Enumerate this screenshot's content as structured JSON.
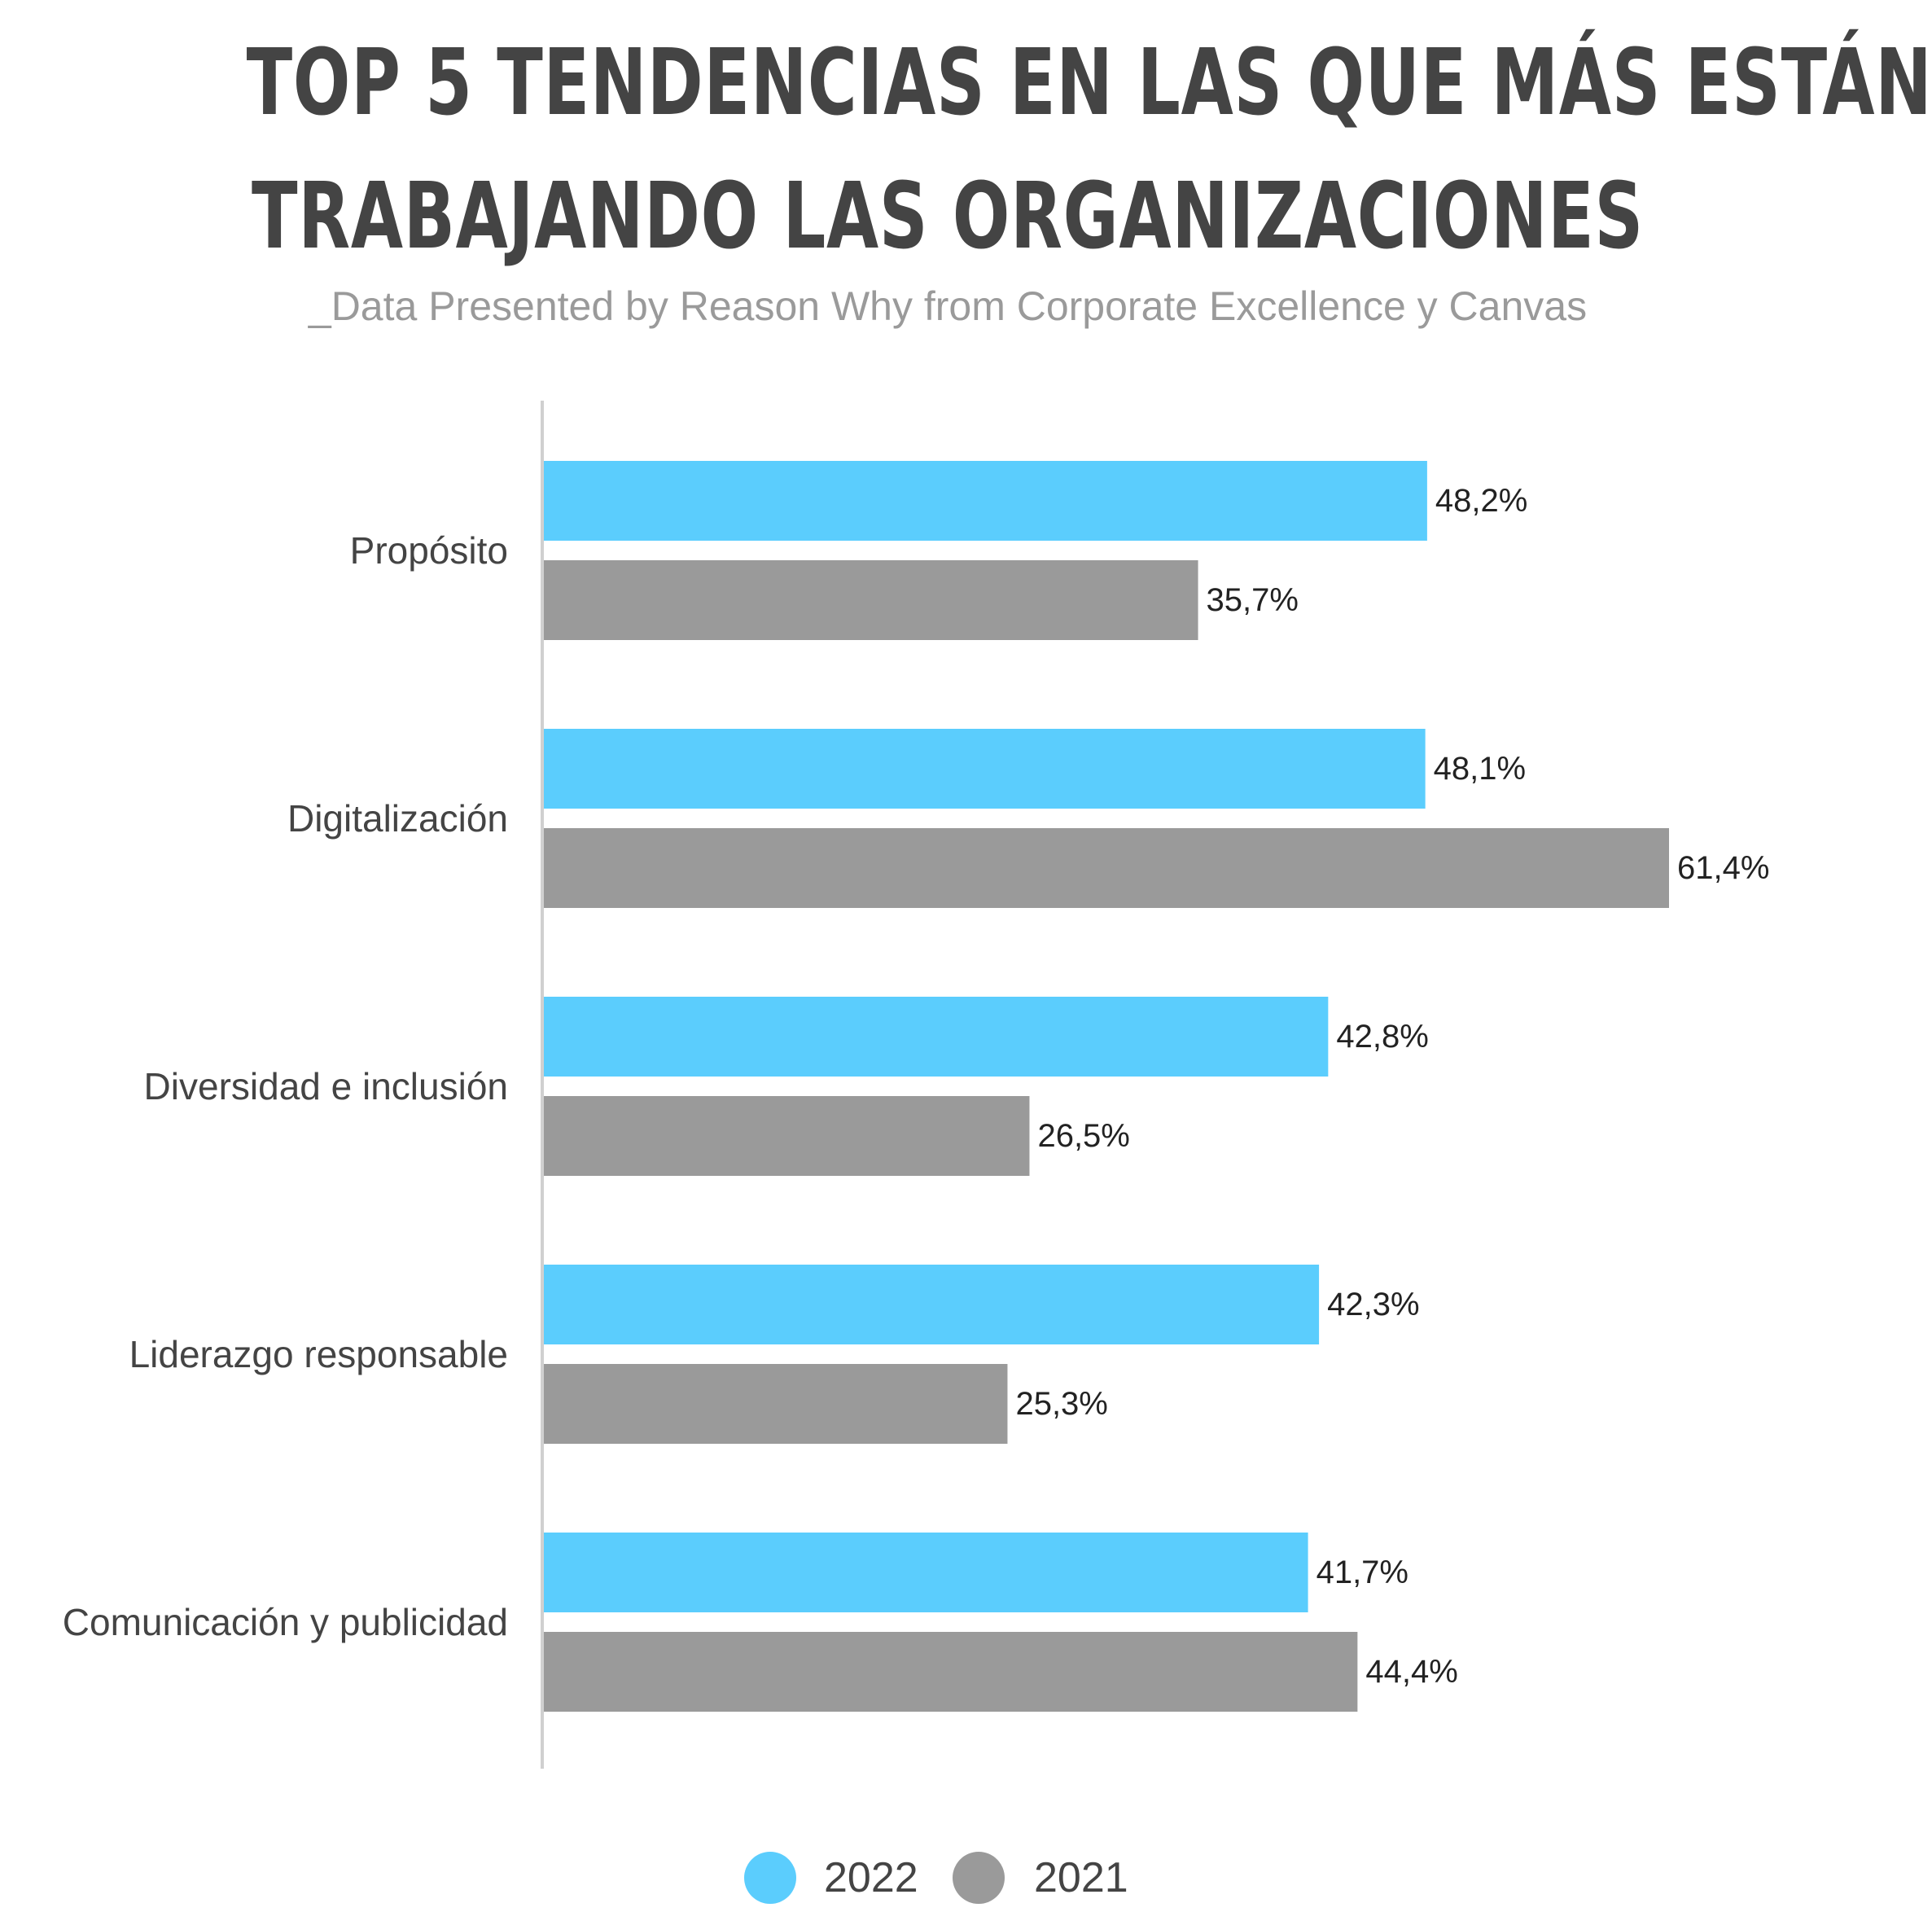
{
  "title": {
    "line1": "TOP 5 TENDENCIAS EN LAS QUE MÁS ESTÁN",
    "line2": "TRABAJANDO LAS ORGANIZACIONES"
  },
  "subtitle": "_Data Presented by Reason Why from Corporate Excellence y Canvas",
  "chart_data": {
    "type": "bar",
    "orientation": "horizontal",
    "categories": [
      "Propósito",
      "Digitalización",
      "Diversidad e inclusión",
      "Liderazgo responsable",
      "Comunicación y publicidad"
    ],
    "series": [
      {
        "name": "2022",
        "color": "#5bcdfd",
        "values": [
          48.2,
          48.1,
          42.8,
          42.3,
          41.7
        ],
        "labels": [
          "48,2%",
          "48,1%",
          "42,8%",
          "42,3%",
          "41,7%"
        ]
      },
      {
        "name": "2021",
        "color": "#9a9a9a",
        "values": [
          35.7,
          61.4,
          26.5,
          25.3,
          44.4
        ],
        "labels": [
          "35,7%",
          "61,4%",
          "26,5%",
          "25,3%",
          "44,4%"
        ]
      }
    ],
    "xlim": [
      0,
      61.4
    ],
    "grid": false,
    "legend": "bottom"
  }
}
